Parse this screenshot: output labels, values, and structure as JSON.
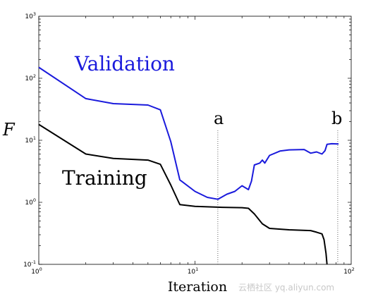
{
  "chart_data": {
    "type": "line",
    "xlabel": "Iteration",
    "ylabel": "F",
    "xscale": "log",
    "yscale": "log",
    "xlim": [
      1,
      100
    ],
    "ylim": [
      0.1,
      1000
    ],
    "x_ticks": [
      {
        "base": "10",
        "exp": "0",
        "value": 1
      },
      {
        "base": "10",
        "exp": "1",
        "value": 10
      },
      {
        "base": "10",
        "exp": "2",
        "value": 100
      }
    ],
    "y_ticks": [
      {
        "base": "10",
        "exp": "-1",
        "value": 0.1
      },
      {
        "base": "10",
        "exp": "0",
        "value": 1
      },
      {
        "base": "10",
        "exp": "1",
        "value": 10
      },
      {
        "base": "10",
        "exp": "2",
        "value": 100
      },
      {
        "base": "10",
        "exp": "3",
        "value": 1000
      }
    ],
    "grid": false,
    "series": [
      {
        "name": "Validation",
        "color": "#1a1adc",
        "points": [
          [
            1,
            150
          ],
          [
            2,
            47
          ],
          [
            3,
            39
          ],
          [
            5,
            37
          ],
          [
            6,
            31
          ],
          [
            7,
            9.5
          ],
          [
            8,
            2.3
          ],
          [
            10,
            1.5
          ],
          [
            12,
            1.2
          ],
          [
            14,
            1.12
          ],
          [
            16,
            1.35
          ],
          [
            18,
            1.5
          ],
          [
            20,
            1.85
          ],
          [
            22,
            1.6
          ],
          [
            23,
            2.2
          ],
          [
            24,
            4.0
          ],
          [
            26,
            4.3
          ],
          [
            27,
            4.8
          ],
          [
            28,
            4.3
          ],
          [
            30,
            5.7
          ],
          [
            35,
            6.7
          ],
          [
            40,
            7.0
          ],
          [
            50,
            7.1
          ],
          [
            55,
            6.2
          ],
          [
            60,
            6.5
          ],
          [
            65,
            6.0
          ],
          [
            68,
            6.8
          ],
          [
            70,
            8.6
          ],
          [
            75,
            8.8
          ],
          [
            83,
            8.7
          ]
        ]
      },
      {
        "name": "Training",
        "color": "#000000",
        "points": [
          [
            1,
            18
          ],
          [
            2,
            6.0
          ],
          [
            3,
            5.1
          ],
          [
            5,
            4.8
          ],
          [
            6,
            4.1
          ],
          [
            7,
            1.9
          ],
          [
            8,
            0.92
          ],
          [
            10,
            0.86
          ],
          [
            15,
            0.83
          ],
          [
            20,
            0.82
          ],
          [
            22,
            0.8
          ],
          [
            24,
            0.65
          ],
          [
            27,
            0.45
          ],
          [
            30,
            0.38
          ],
          [
            40,
            0.36
          ],
          [
            55,
            0.35
          ],
          [
            60,
            0.33
          ],
          [
            65,
            0.31
          ],
          [
            67,
            0.25
          ],
          [
            69,
            0.15
          ],
          [
            70,
            0.1
          ]
        ]
      }
    ],
    "annotations": [
      {
        "text": "a",
        "x": 14
      },
      {
        "text": "b",
        "x": 82
      }
    ]
  },
  "watermark": "云栖社区 yq.aliyun.com"
}
